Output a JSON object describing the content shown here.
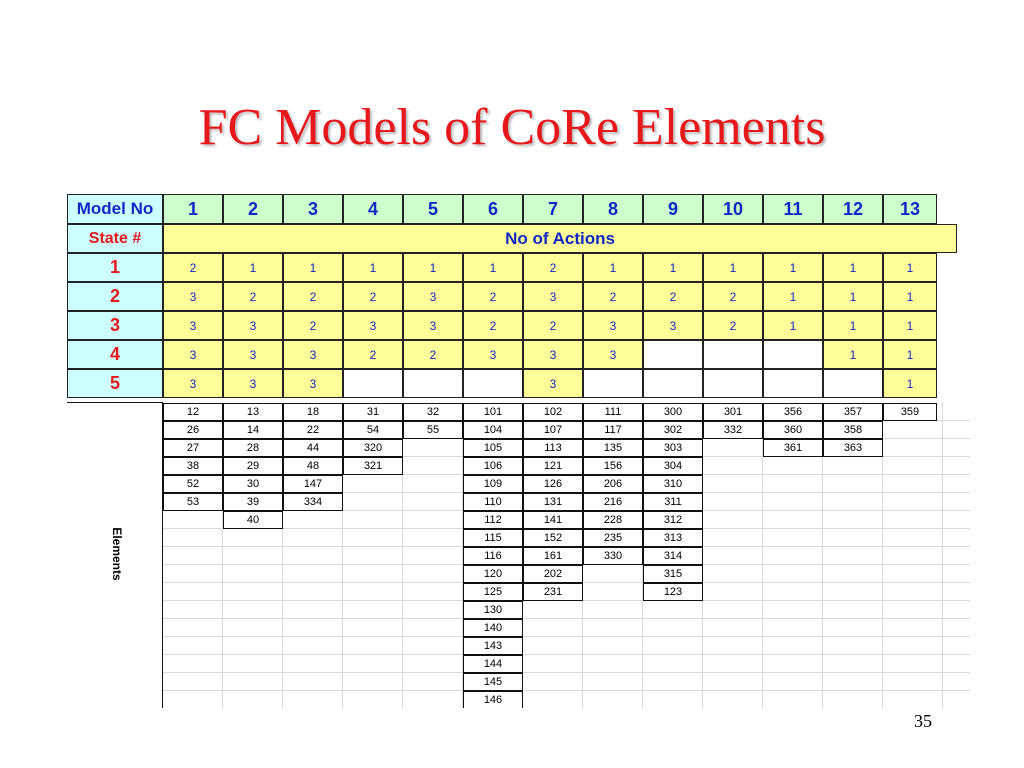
{
  "title": "FC Models of CoRe Elements",
  "page_number": "35",
  "table": {
    "model_label": "Model No",
    "state_label": "State #",
    "actions_label": "No of Actions",
    "elements_label": "Elements",
    "models": [
      "1",
      "2",
      "3",
      "4",
      "5",
      "6",
      "7",
      "8",
      "9",
      "10",
      "11",
      "12",
      "13"
    ],
    "states": [
      {
        "label": "1",
        "values": [
          "2",
          "1",
          "1",
          "1",
          "1",
          "1",
          "2",
          "1",
          "1",
          "1",
          "1",
          "1",
          "1"
        ]
      },
      {
        "label": "2",
        "values": [
          "3",
          "2",
          "2",
          "2",
          "3",
          "2",
          "3",
          "2",
          "2",
          "2",
          "1",
          "1",
          "1"
        ]
      },
      {
        "label": "3",
        "values": [
          "3",
          "3",
          "2",
          "3",
          "3",
          "2",
          "2",
          "3",
          "3",
          "2",
          "1",
          "1",
          "1"
        ]
      },
      {
        "label": "4",
        "values": [
          "3",
          "3",
          "3",
          "2",
          "2",
          "3",
          "3",
          "3",
          "",
          "",
          "",
          "1",
          "1"
        ]
      },
      {
        "label": "5",
        "values": [
          "3",
          "3",
          "3",
          "",
          "",
          "",
          "3",
          "",
          "",
          "",
          "",
          "",
          "1"
        ]
      }
    ],
    "elements": [
      [
        "12",
        "26",
        "27",
        "38",
        "52",
        "53"
      ],
      [
        "13",
        "14",
        "28",
        "29",
        "30",
        "39",
        "40"
      ],
      [
        "18",
        "22",
        "44",
        "48",
        "147",
        "334"
      ],
      [
        "31",
        "54",
        "320",
        "321"
      ],
      [
        "32",
        "55"
      ],
      [
        "101",
        "104",
        "105",
        "106",
        "109",
        "110",
        "112",
        "115",
        "116",
        "120",
        "125",
        "130",
        "140",
        "143",
        "144",
        "145",
        "146"
      ],
      [
        "102",
        "107",
        "113",
        "121",
        "126",
        "131",
        "141",
        "152",
        "161",
        "202",
        "231"
      ],
      [
        "111",
        "117",
        "135",
        "156",
        "206",
        "216",
        "228",
        "235",
        "330"
      ],
      [
        "300",
        "302",
        "303",
        "304",
        "310",
        "311",
        "312",
        "313",
        "314",
        "315",
        "123"
      ],
      [
        "301",
        "332"
      ],
      [
        "356",
        "360",
        "361"
      ],
      [
        "357",
        "358",
        "363"
      ],
      [
        "359"
      ]
    ]
  }
}
